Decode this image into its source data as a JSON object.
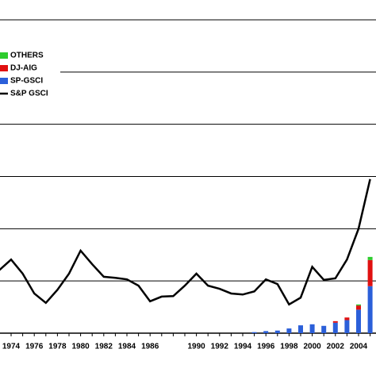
{
  "chart_data": {
    "type": "bar",
    "stacked": true,
    "categories": [
      null,
      "1974",
      null,
      "1976",
      null,
      "1978",
      null,
      "1980",
      null,
      "1982",
      null,
      "1984",
      null,
      "1986",
      null,
      null,
      null,
      "1990",
      null,
      "1992",
      null,
      "1994",
      null,
      "1996",
      null,
      "1998",
      null,
      "2000",
      null,
      "2002",
      null,
      "2004",
      null
    ],
    "series": [
      {
        "name": "OTHERS",
        "type": "bar",
        "color": "#2ecc2e",
        "values": [
          0,
          0,
          0,
          0,
          0,
          0,
          0,
          0,
          0,
          0,
          0,
          0,
          0,
          0,
          0,
          0,
          0,
          0,
          0,
          0,
          0,
          0,
          0,
          0,
          0,
          0,
          0,
          0,
          0,
          0,
          0,
          0.02,
          0.06
        ]
      },
      {
        "name": "DJ-AIG",
        "type": "bar",
        "color": "#e01010",
        "values": [
          0,
          0,
          0,
          0,
          0,
          0,
          0,
          0,
          0,
          0,
          0,
          0,
          0,
          0,
          0,
          0,
          0,
          0,
          0,
          0,
          0,
          0,
          0,
          0,
          0,
          0,
          0,
          0,
          0,
          0.03,
          0.05,
          0.08,
          0.5
        ]
      },
      {
        "name": "SP-GSCI",
        "type": "bar",
        "color": "#2b5fd9",
        "values": [
          0,
          0,
          0,
          0,
          0,
          0,
          0,
          0,
          0,
          0,
          0,
          0,
          0,
          0,
          0,
          0,
          0,
          0,
          0,
          0,
          0,
          0,
          0.02,
          0.04,
          0.05,
          0.09,
          0.15,
          0.17,
          0.14,
          0.2,
          0.25,
          0.45,
          0.9
        ]
      },
      {
        "name": "S&P GSCI",
        "type": "line",
        "color": "#000000",
        "values": [
          1.21,
          1.41,
          1.14,
          0.76,
          0.58,
          0.83,
          1.14,
          1.58,
          1.32,
          1.08,
          1.06,
          1.03,
          0.91,
          0.61,
          0.7,
          0.71,
          0.91,
          1.14,
          0.91,
          0.85,
          0.76,
          0.74,
          0.8,
          1.03,
          0.94,
          0.55,
          0.68,
          1.27,
          1.02,
          1.05,
          1.41,
          2.0,
          2.95
        ]
      }
    ],
    "ylim": [
      0,
      6
    ],
    "yticks": [
      0,
      1,
      2,
      3,
      4,
      5,
      6
    ],
    "grid": true
  }
}
